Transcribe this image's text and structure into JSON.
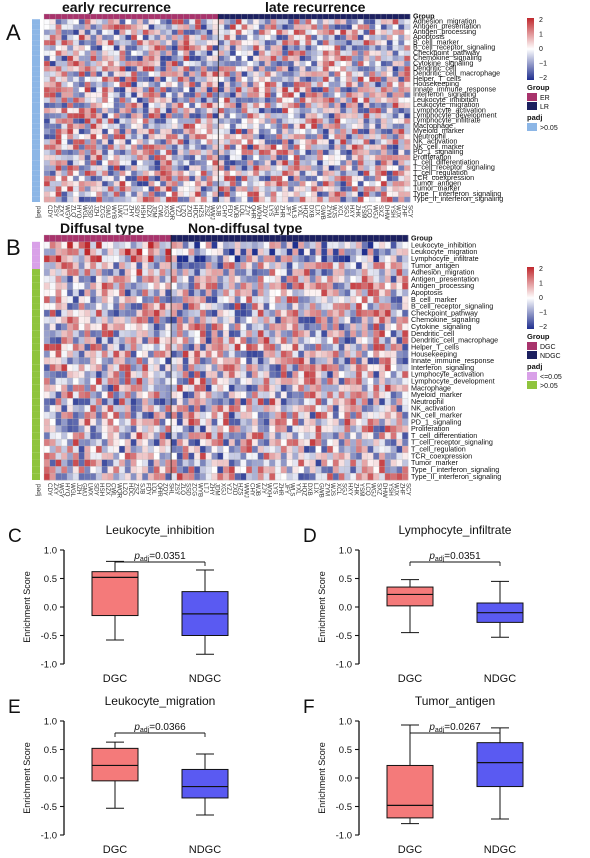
{
  "colors": {
    "high": "#c0282d",
    "mid": "#ffffff",
    "low": "#1f2f8f",
    "er": "#a8336c",
    "lr": "#1c2060",
    "dgc": "#a8336c",
    "ndgc": "#1c2060",
    "padj_sig": "#d9a1e8",
    "padj_ns": "#8cb6e6",
    "padj_ns_b": "#8fc43d",
    "box_dgc": "#f47a7a",
    "box_ndgc": "#5a5af2"
  },
  "panel_a": {
    "letter": "A",
    "group_titles": [
      "early recurrence",
      "late recurrence"
    ],
    "rows": [
      "Group",
      "Adhesion_migration",
      "Antigen_presentation",
      "Antigen_processing",
      "Apoptosis",
      "B_cell_marker",
      "B_cell_receptor_signaling",
      "Checkpoint_pathway",
      "Chemokine_signaling",
      "Cytokine_signaling",
      "Dendritic_cell",
      "Dendritic_cell_macrophage",
      "Helper_T_cells",
      "Housekeeping",
      "Innate_immune_response",
      "Interferon_signaling",
      "Leukocyte_inhibition",
      "Leukocyte_migration",
      "Lymphocyte_activation",
      "Lymphocyte_development",
      "Lymphocyte_infiltrate",
      "Macrophage",
      "Myeloid_marker",
      "Neutrophil",
      "NK_activation",
      "NK_cell_marker",
      "PD_1_signaling",
      "Proliferation",
      "T_cell_differentiation",
      "T_cell_receptor_signaling",
      "T_cell_regulation",
      "TCR_coexpression",
      "Tumor_antigen",
      "Tumor_marker",
      "Type_I_interferon_signaling",
      "Type_II_interferon_signaling"
    ],
    "n_early": 30,
    "n_late": 33,
    "legend": {
      "scale": [
        "2",
        "1",
        "0",
        "−1",
        "−2"
      ],
      "group_title": "Group",
      "group_items": [
        "ER",
        "LR"
      ],
      "padj_title": "padj",
      "padj_items": [
        ">0.05"
      ]
    },
    "padj_label": "padj",
    "col_labels": [
      "CDY",
      "ZSY",
      "ZXY",
      "WGY",
      "ZLQ",
      "HYQ",
      "WGL",
      "SSD",
      "JZH",
      "ZCG",
      "GMJ",
      "WYB",
      "LWX",
      "LTJ",
      "ZHY",
      "SDY",
      "HSH",
      "DZX",
      "JDM",
      "CWL",
      "XGJ",
      "WQR",
      "YZJ",
      "LZQ",
      "ZXD",
      "HDC",
      "HZS",
      "ZSZ",
      "WWJ",
      "SJB",
      "CHY",
      "FDY",
      "WJB",
      "LQL",
      "ZJY",
      "QHR",
      "WXH",
      "ZQY",
      "LYS",
      "SHL",
      "ZHR",
      "JFY",
      "WLS",
      "YXL",
      "HQZ",
      "DXB",
      "LJX",
      "GWB",
      "ZYM",
      "WJS",
      "XCL",
      "SGJ",
      "HXY",
      "ZHK",
      "YSM",
      "LCQ",
      "WGJ",
      "SXZ",
      "DHW",
      "YSH",
      "WJX",
      "ZHF",
      "SCY"
    ]
  },
  "panel_b": {
    "letter": "B",
    "group_titles": [
      "Diffusal type",
      "Non-diffusal type"
    ],
    "rows": [
      "Group",
      "Leukocyte_inhibition",
      "Leukocyte_migration",
      "Lymphocyte_infiltrate",
      "Tumor_antigen",
      "Adhesion_migration",
      "Antigen_presentation",
      "Antigen_processing",
      "Apoptosis",
      "B_cell_marker",
      "B_cell_receptor_signaling",
      "Checkpoint_pathway",
      "Chemokine_signaling",
      "Cytokine_signaling",
      "Dendritic_cell",
      "Dendritic_cell_macrophage",
      "Helper_T_cells",
      "Housekeeping",
      "Innate_immune_response",
      "Interferon_signaling",
      "Lymphocyte_activation",
      "Lymphocyte_development",
      "Macrophage",
      "Myeloid_marker",
      "Neutrophil",
      "NK_activation",
      "NK_cell_marker",
      "PD_1_signaling",
      "Proliferation",
      "T_cell_differentiation",
      "T_cell_receptor_signaling",
      "T_cell_regulation",
      "TCR_coexpression",
      "Tumor_marker",
      "Type_I_interferon_signaling",
      "Type_II_interferon_signaling"
    ],
    "n_diff": 22,
    "n_non": 41,
    "legend": {
      "scale": [
        "2",
        "1",
        "0",
        "−1",
        "−2"
      ],
      "group_title": "Group",
      "group_items": [
        "DGC",
        "NDGC"
      ],
      "padj_title": "padj",
      "padj_items": [
        "<=0.05",
        ">0.05"
      ]
    },
    "padj_label": "padj",
    "col_labels": [
      "CDY",
      "ZXY",
      "WGY",
      "HYQ",
      "WGL",
      "JZH",
      "GMJ",
      "LWX",
      "SDY",
      "HSH",
      "DZX",
      "CWL",
      "WQR",
      "LZQ",
      "HDC",
      "ZSZ",
      "SJB",
      "FDY",
      "LQL",
      "QHR",
      "ZQY",
      "SHL",
      "ZSY",
      "ZLQ",
      "SSD",
      "ZCG",
      "WYB",
      "LTJ",
      "ZHY",
      "JDM",
      "XGJ",
      "YZJ",
      "ZXD",
      "HZS",
      "WWJ",
      "CHY",
      "WJB",
      "ZJY",
      "WXH",
      "LYS",
      "ZHR",
      "JFY",
      "WLS",
      "YXL",
      "HQZ",
      "DXB",
      "LJX",
      "GWB",
      "ZYM",
      "WJS",
      "XCL",
      "SGJ",
      "HXY",
      "ZHK",
      "YSM",
      "LCQ",
      "WGJ",
      "SXZ",
      "DHW",
      "YSH",
      "WJX",
      "ZHF",
      "SCY"
    ]
  },
  "chart_data": [
    {
      "type": "box",
      "letter": "C",
      "title": "Leukocyte_inhibition",
      "ylabel": "Enrichment Score",
      "categories": [
        "DGC",
        "NDGC"
      ],
      "ylim": [
        -1.0,
        1.0
      ],
      "yticks": [
        "1.0",
        "0.5",
        "0.0",
        "-0.5",
        "-1.0"
      ],
      "boxes": [
        {
          "min": -0.58,
          "q1": -0.15,
          "median": 0.52,
          "q3": 0.62,
          "max": 0.8
        },
        {
          "min": -0.83,
          "q1": -0.5,
          "median": -0.12,
          "q3": 0.27,
          "max": 0.65
        }
      ],
      "annotation": {
        "p": "p",
        "sub": "adj",
        "value": "=0.0351"
      }
    },
    {
      "type": "box",
      "letter": "D",
      "title": "Lymphocyte_infiltrate",
      "ylabel": "Enrichment Score",
      "categories": [
        "DGC",
        "NDGC"
      ],
      "ylim": [
        -1.0,
        1.0
      ],
      "yticks": [
        "1.0",
        "0.5",
        "0.0",
        "-0.5",
        "-1.0"
      ],
      "boxes": [
        {
          "min": -0.45,
          "q1": 0.02,
          "median": 0.22,
          "q3": 0.35,
          "max": 0.48
        },
        {
          "min": -0.53,
          "q1": -0.27,
          "median": -0.1,
          "q3": 0.07,
          "max": 0.45
        }
      ],
      "annotation": {
        "p": "p",
        "sub": "adj",
        "value": "=0.0351"
      }
    },
    {
      "type": "box",
      "letter": "E",
      "title": "Leukocyte_migration",
      "ylabel": "Enrichment Score",
      "categories": [
        "DGC",
        "NDGC"
      ],
      "ylim": [
        -1.0,
        1.0
      ],
      "yticks": [
        "1.0",
        "0.5",
        "0.0",
        "-0.5",
        "-1.0"
      ],
      "boxes": [
        {
          "min": -0.53,
          "q1": -0.05,
          "median": 0.22,
          "q3": 0.52,
          "max": 0.63
        },
        {
          "min": -0.65,
          "q1": -0.35,
          "median": -0.15,
          "q3": 0.15,
          "max": 0.42
        }
      ],
      "annotation": {
        "p": "p",
        "sub": "adj",
        "value": "=0.0366"
      }
    },
    {
      "type": "box",
      "letter": "F",
      "title": "Tumor_antigen",
      "ylabel": "Enrichment Score",
      "categories": [
        "DGC",
        "NDGC"
      ],
      "ylim": [
        -1.0,
        1.0
      ],
      "yticks": [
        "1.0",
        "0.5",
        "0.0",
        "-0.5",
        "-1.0"
      ],
      "boxes": [
        {
          "min": -0.8,
          "q1": -0.7,
          "median": -0.48,
          "q3": 0.22,
          "max": 0.93
        },
        {
          "min": -0.72,
          "q1": -0.15,
          "median": 0.27,
          "q3": 0.62,
          "max": 0.88
        }
      ],
      "annotation": {
        "p": "p",
        "sub": "adj",
        "value": "=0.0267"
      }
    }
  ]
}
